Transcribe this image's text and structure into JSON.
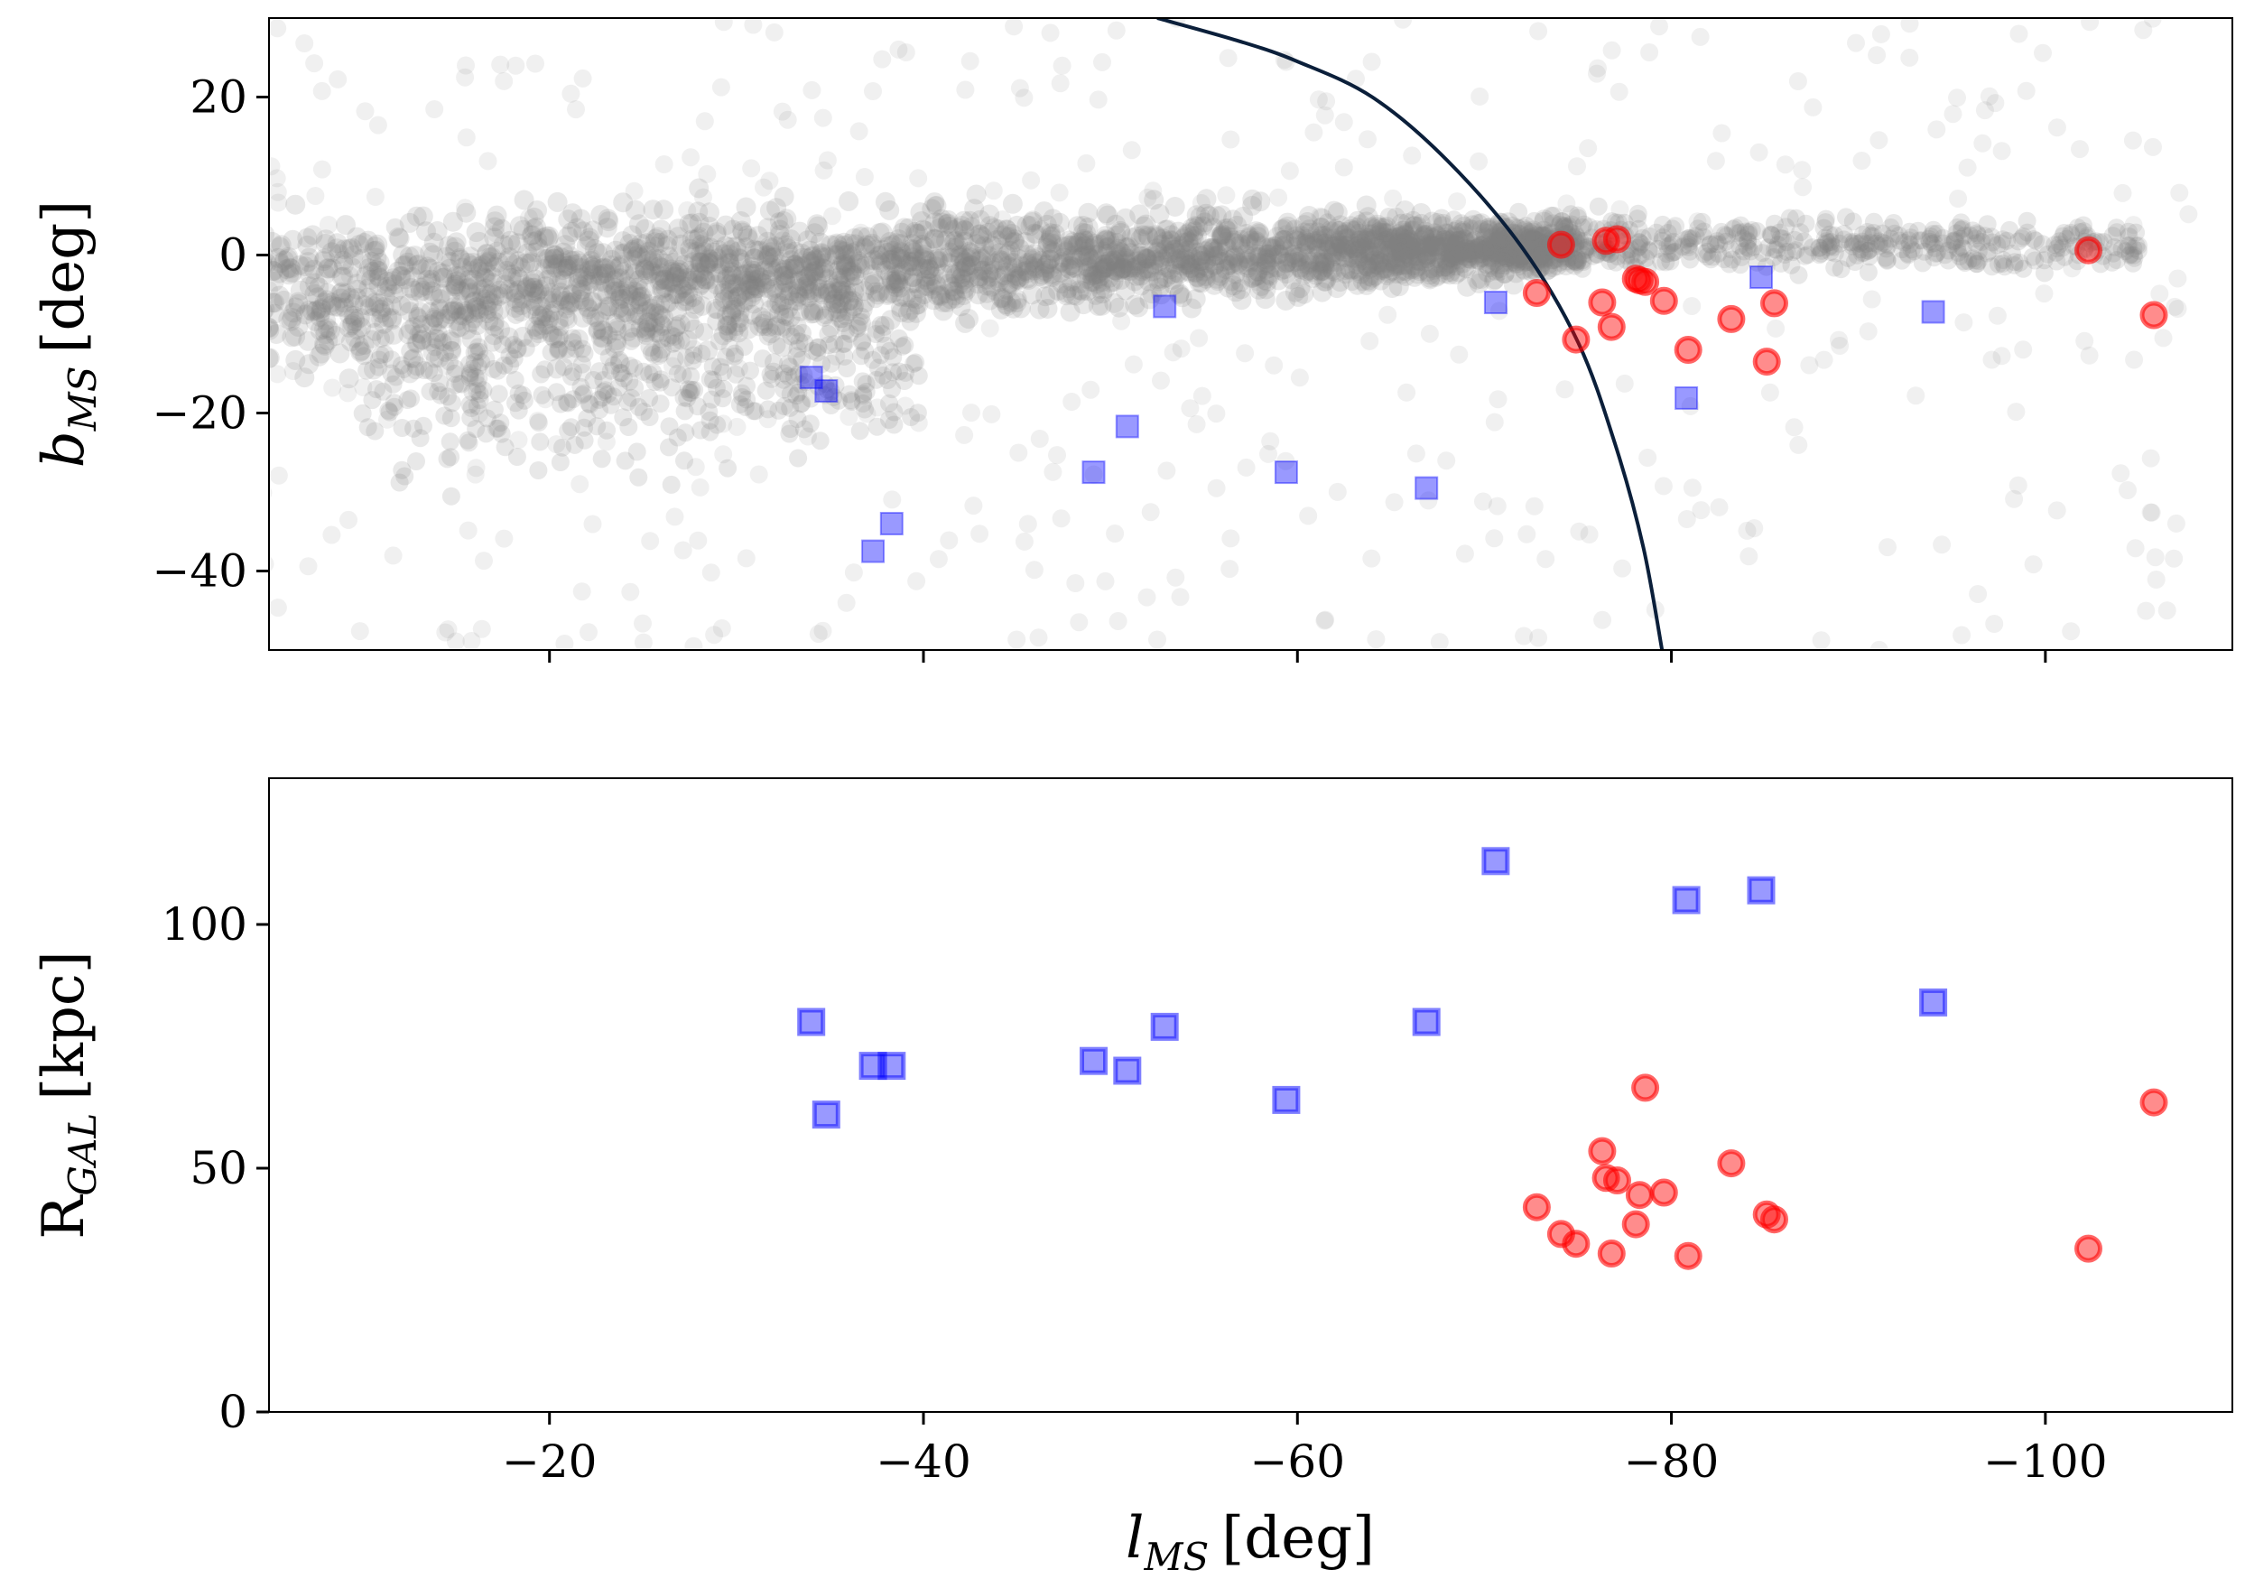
{
  "chart_data": [
    {
      "type": "scatter",
      "panel": "top",
      "ylabel": "b_MS [deg]",
      "ylabel_base": "b",
      "ylabel_sub": "MS",
      "ylabel_unit": "[deg]",
      "xlim": [
        -5,
        -110
      ],
      "ylim": [
        -50,
        30
      ],
      "x_tick_values": [
        -20,
        -40,
        -60,
        -80,
        -100
      ],
      "y_tick_values": [
        20,
        0,
        -20,
        -40
      ],
      "y_tick_labels": [
        "20",
        "0",
        "−20",
        "−40"
      ],
      "curve": {
        "description": "boundary curve",
        "color": "#0b1f3a",
        "points": [
          [
            -52.5,
            30
          ],
          [
            -57,
            27
          ],
          [
            -60,
            24.5
          ],
          [
            -64,
            20
          ],
          [
            -68,
            12
          ],
          [
            -72,
            1
          ],
          [
            -75,
            -11
          ],
          [
            -77,
            -24
          ],
          [
            -78.5,
            -37
          ],
          [
            -79.5,
            -50
          ]
        ]
      },
      "series": [
        {
          "name": "blue squares",
          "marker": "square",
          "color": "#0000ff",
          "x": [
            -34.0,
            -34.8,
            -37.3,
            -38.3,
            -49.1,
            -50.9,
            -52.9,
            -59.4,
            -66.9,
            -70.6,
            -80.8,
            -84.8,
            -94.0
          ],
          "y": [
            -15.5,
            -17.2,
            -37.5,
            -34.0,
            -27.5,
            -21.7,
            -6.5,
            -27.5,
            -29.5,
            -6.0,
            -18.1,
            -2.8,
            -7.2
          ]
        },
        {
          "name": "red circles",
          "marker": "circle",
          "color": "#ff0000",
          "x": [
            -72.8,
            -74.1,
            -74.9,
            -76.3,
            -76.5,
            -76.8,
            -77.1,
            -78.1,
            -78.3,
            -78.6,
            -79.6,
            -80.9,
            -83.2,
            -85.1,
            -85.5,
            -102.3,
            -105.8
          ],
          "y": [
            -4.8,
            1.3,
            -10.7,
            -6.0,
            1.8,
            -9.1,
            2.0,
            -3.0,
            -3.2,
            -3.4,
            -5.8,
            -12.0,
            -8.1,
            -13.5,
            -6.1,
            0.6,
            -7.6
          ]
        },
        {
          "name": "background stream",
          "marker": "circle",
          "color": "#808080",
          "style": "dense semi-transparent grey cloud"
        }
      ]
    },
    {
      "type": "scatter",
      "panel": "bottom",
      "xlabel": "l_MS [deg]",
      "xlabel_base": "l",
      "xlabel_sub": "MS",
      "xlabel_unit": "[deg]",
      "ylabel": "R_GAL [kpc]",
      "ylabel_base": "R",
      "ylabel_sub": "GAL",
      "ylabel_unit": "[kpc]",
      "xlim": [
        -5,
        -110
      ],
      "ylim": [
        0,
        130
      ],
      "x_tick_values": [
        -20,
        -40,
        -60,
        -80,
        -100
      ],
      "x_tick_labels": [
        "−20",
        "−40",
        "−60",
        "−80",
        "−100"
      ],
      "y_tick_values": [
        100,
        50,
        0
      ],
      "y_tick_labels": [
        "100",
        "50",
        "0"
      ],
      "series": [
        {
          "name": "blue squares",
          "marker": "square",
          "color": "#0000ff",
          "x": [
            -34.0,
            -34.8,
            -37.3,
            -38.3,
            -49.1,
            -50.9,
            -52.9,
            -59.4,
            -66.9,
            -70.6,
            -80.8,
            -84.8,
            -94.0
          ],
          "y": [
            80,
            61,
            71,
            71,
            72,
            70,
            79,
            64,
            80,
            113,
            105,
            107,
            84
          ]
        },
        {
          "name": "red circles",
          "marker": "circle",
          "color": "#ff0000",
          "x": [
            -72.8,
            -74.1,
            -74.9,
            -76.3,
            -76.5,
            -76.8,
            -77.1,
            -78.1,
            -78.3,
            -78.6,
            -79.6,
            -80.9,
            -83.2,
            -85.1,
            -85.5,
            -102.3,
            -105.8
          ],
          "y": [
            42,
            36.5,
            34.5,
            53.5,
            48,
            32.5,
            47.5,
            38.5,
            44.5,
            66.5,
            45,
            32,
            51,
            40.5,
            39.5,
            33.5,
            63.5
          ]
        }
      ]
    }
  ]
}
